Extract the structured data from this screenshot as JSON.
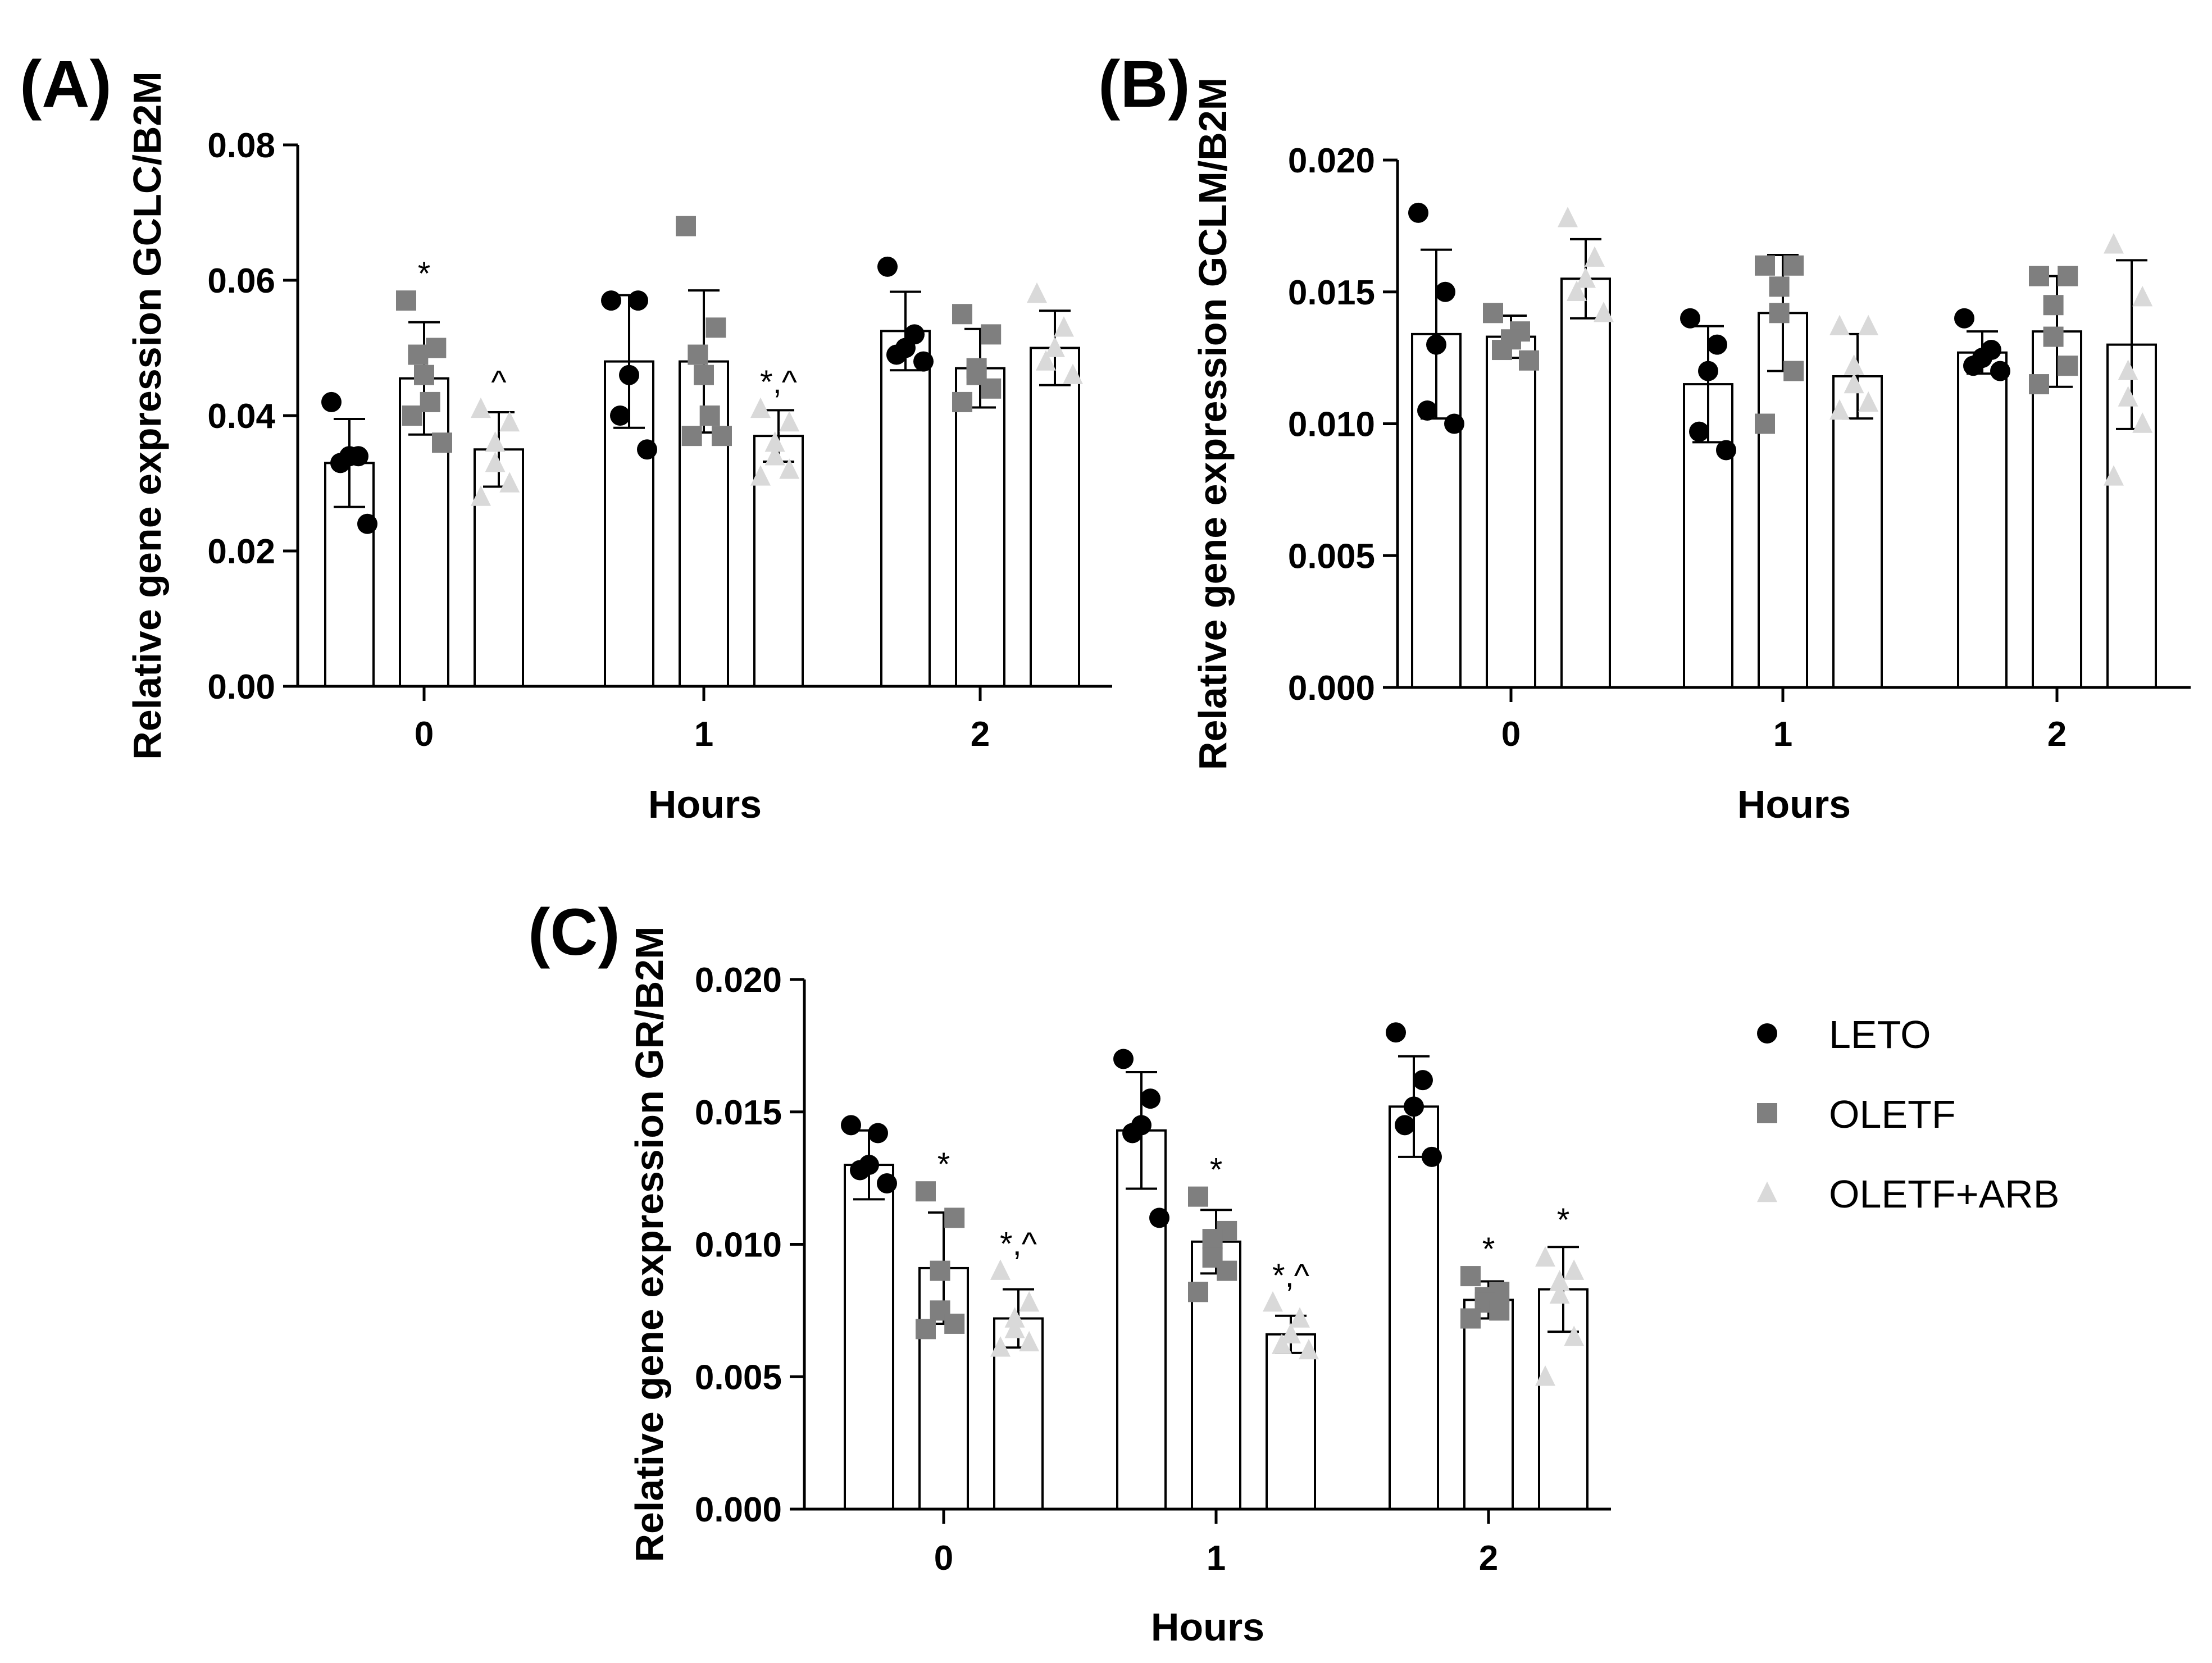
{
  "chart_data": [
    {
      "panel": "(A)",
      "type": "bar",
      "title": "",
      "xlabel": "Hours",
      "ylabel": "Relative gene expression GCLC/B2M",
      "categories": [
        "0",
        "1",
        "2"
      ],
      "ylim": [
        0,
        0.08
      ],
      "yticks": [
        "0.00",
        "0.02",
        "0.04",
        "0.06",
        "0.08"
      ],
      "series": [
        {
          "name": "LETO",
          "values": [
            0.033,
            0.048,
            0.0525
          ],
          "sd": [
            0.0065,
            0.0098,
            0.0058
          ],
          "points": [
            [
              0.042,
              0.034,
              0.034,
              0.033,
              0.024
            ],
            [
              0.057,
              0.057,
              0.046,
              0.04,
              0.035
            ],
            [
              0.062,
              0.052,
              0.05,
              0.049,
              0.048
            ]
          ]
        },
        {
          "name": "OLETF",
          "values": [
            0.0455,
            0.048,
            0.047
          ],
          "sd": [
            0.0083,
            0.0105,
            0.0058
          ],
          "points": [
            [
              0.057,
              0.05,
              0.049,
              0.046,
              0.042,
              0.04,
              0.036
            ],
            [
              0.068,
              0.053,
              0.049,
              0.046,
              0.04,
              0.037,
              0.037
            ],
            [
              0.055,
              0.052,
              0.047,
              0.046,
              0.044,
              0.042
            ]
          ]
        },
        {
          "name": "OLETF+ARB",
          "values": [
            0.035,
            0.037,
            0.05
          ],
          "sd": [
            0.0055,
            0.0038,
            0.0055
          ],
          "points": [
            [
              0.041,
              0.039,
              0.036,
              0.033,
              0.03,
              0.028
            ],
            [
              0.041,
              0.039,
              0.036,
              0.034,
              0.032,
              0.031
            ],
            [
              0.058,
              0.053,
              0.05,
              0.048,
              0.046
            ]
          ]
        }
      ],
      "annotations": [
        {
          "series": "OLETF",
          "category": "0",
          "text": "*"
        },
        {
          "series": "OLETF+ARB",
          "category": "0",
          "text": "^"
        },
        {
          "series": "OLETF+ARB",
          "category": "1",
          "text": "*,^"
        }
      ]
    },
    {
      "panel": "(B)",
      "type": "bar",
      "title": "",
      "xlabel": "Hours",
      "ylabel": "Relative gene expression GCLM/B2M",
      "categories": [
        "0",
        "1",
        "2"
      ],
      "ylim": [
        0,
        0.02
      ],
      "yticks": [
        "0.000",
        "0.005",
        "0.010",
        "0.015",
        "0.020"
      ],
      "series": [
        {
          "name": "LETO",
          "values": [
            0.0134,
            0.0115,
            0.0127
          ],
          "sd": [
            0.0032,
            0.0022,
            0.0008
          ],
          "points": [
            [
              0.018,
              0.015,
              0.013,
              0.0105,
              0.01
            ],
            [
              0.014,
              0.013,
              0.012,
              0.0097,
              0.009
            ],
            [
              0.014,
              0.0128,
              0.0125,
              0.0122,
              0.012
            ]
          ]
        },
        {
          "name": "OLETF",
          "values": [
            0.0133,
            0.0142,
            0.0135
          ],
          "sd": [
            0.0008,
            0.0022,
            0.0021
          ],
          "points": [
            [
              0.0142,
              0.0135,
              0.0132,
              0.0128,
              0.0124
            ],
            [
              0.016,
              0.016,
              0.0152,
              0.0142,
              0.012,
              0.01
            ],
            [
              0.0156,
              0.0156,
              0.0145,
              0.0133,
              0.0122,
              0.0115
            ]
          ]
        },
        {
          "name": "OLETF+ARB",
          "values": [
            0.0155,
            0.0118,
            0.013
          ],
          "sd": [
            0.0015,
            0.0016,
            0.0032
          ],
          "points": [
            [
              0.0178,
              0.0163,
              0.0155,
              0.015,
              0.0142
            ],
            [
              0.0137,
              0.0137,
              0.0122,
              0.0115,
              0.0108,
              0.0105
            ],
            [
              0.0168,
              0.0148,
              0.012,
              0.011,
              0.01,
              0.008
            ]
          ]
        }
      ],
      "annotations": []
    },
    {
      "panel": "(C)",
      "type": "bar",
      "title": "",
      "xlabel": "Hours",
      "ylabel": "Relative gene expression GR/B2M",
      "categories": [
        "0",
        "1",
        "2"
      ],
      "ylim": [
        0,
        0.02
      ],
      "yticks": [
        "0.000",
        "0.005",
        "0.010",
        "0.015",
        "0.020"
      ],
      "series": [
        {
          "name": "LETO",
          "values": [
            0.013,
            0.0143,
            0.0152
          ],
          "sd": [
            0.0013,
            0.0022,
            0.0019
          ],
          "points": [
            [
              0.0145,
              0.0142,
              0.013,
              0.0128,
              0.0123
            ],
            [
              0.017,
              0.0155,
              0.0145,
              0.0142,
              0.011
            ],
            [
              0.018,
              0.0162,
              0.0152,
              0.0145,
              0.0133
            ]
          ]
        },
        {
          "name": "OLETF",
          "values": [
            0.0091,
            0.0101,
            0.0079
          ],
          "sd": [
            0.0021,
            0.0012,
            0.0007
          ],
          "points": [
            [
              0.012,
              0.011,
              0.009,
              0.0075,
              0.007,
              0.0068
            ],
            [
              0.0118,
              0.0105,
              0.0102,
              0.0095,
              0.009,
              0.0082
            ],
            [
              0.0088,
              0.0082,
              0.008,
              0.0078,
              0.0075,
              0.0072
            ]
          ]
        },
        {
          "name": "OLETF+ARB",
          "values": [
            0.0072,
            0.0066,
            0.0083
          ],
          "sd": [
            0.0011,
            0.0007,
            0.0016
          ],
          "points": [
            [
              0.009,
              0.0078,
              0.0072,
              0.0068,
              0.0063,
              0.0061
            ],
            [
              0.0078,
              0.0072,
              0.0066,
              0.0062,
              0.006
            ],
            [
              0.0095,
              0.009,
              0.0086,
              0.0081,
              0.0065,
              0.005
            ]
          ]
        }
      ],
      "annotations": [
        {
          "series": "OLETF",
          "category": "0",
          "text": "*"
        },
        {
          "series": "OLETF+ARB",
          "category": "0",
          "text": "*,^"
        },
        {
          "series": "OLETF",
          "category": "1",
          "text": "*"
        },
        {
          "series": "OLETF+ARB",
          "category": "1",
          "text": "*,^"
        },
        {
          "series": "OLETF",
          "category": "2",
          "text": "*"
        },
        {
          "series": "OLETF+ARB",
          "category": "2",
          "text": "*"
        }
      ]
    }
  ],
  "legend": {
    "items": [
      {
        "label": "LETO",
        "marker": "circle",
        "color": "#000000"
      },
      {
        "label": "OLETF",
        "marker": "square",
        "color": "#7f7f7f"
      },
      {
        "label": "OLETF+ARB",
        "marker": "triangle",
        "color": "#d9d9d9"
      }
    ]
  },
  "colors": {
    "LETO": "#000000",
    "OLETF": "#7f7f7f",
    "OLETF+ARB": "#d9d9d9",
    "bar_fill": "#ffffff",
    "axis": "#000000"
  }
}
